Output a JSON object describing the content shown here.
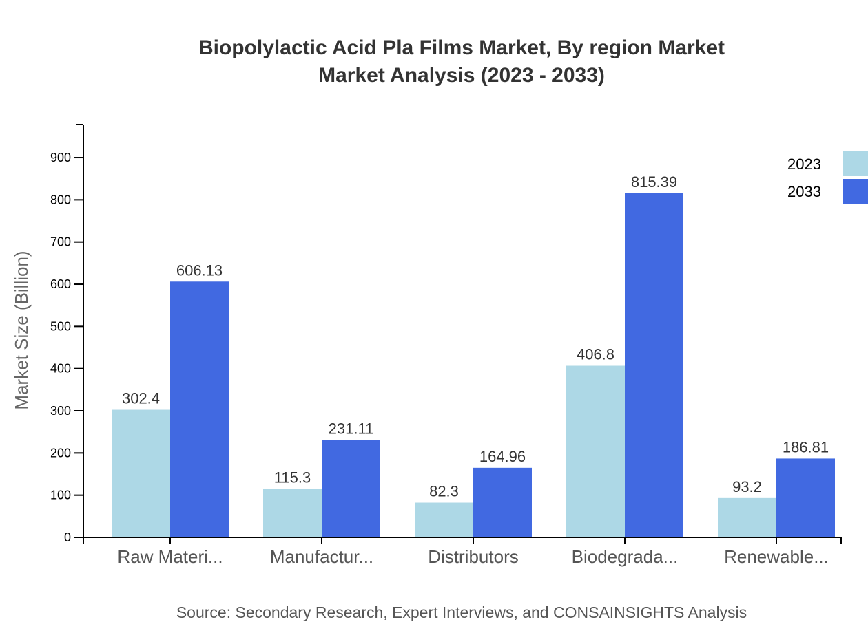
{
  "chart_data": {
    "type": "bar",
    "title_line1": "Biopolylactic Acid Pla Films Market, By region Market",
    "title_line2": "Market Analysis (2023 - 2033)",
    "ylabel": "Market Size (Billion)",
    "xlabel": "",
    "ylim": [
      0,
      900
    ],
    "yticks": [
      "0",
      "100",
      "200",
      "300",
      "400",
      "500",
      "600",
      "700",
      "800",
      "900"
    ],
    "categories": [
      "Raw Materi...",
      "Manufactur...",
      "Distributors",
      "Biodegrada...",
      "Renewable..."
    ],
    "series": [
      {
        "name": "2023",
        "color": "#add8e6",
        "values": [
          302.4,
          115.3,
          82.3,
          406.8,
          93.2
        ],
        "labels": [
          "302.4",
          "115.3",
          "82.3",
          "406.8",
          "93.2"
        ]
      },
      {
        "name": "2033",
        "color": "#4169e1",
        "values": [
          606.13,
          231.11,
          164.96,
          815.39,
          186.81
        ],
        "labels": [
          "606.13",
          "231.11",
          "164.96",
          "815.39",
          "186.81"
        ]
      }
    ],
    "legend_position": "top-right",
    "grid": false,
    "source": "Source: Secondary Research, Expert Interviews, and CONSAINSIGHTS Analysis"
  }
}
